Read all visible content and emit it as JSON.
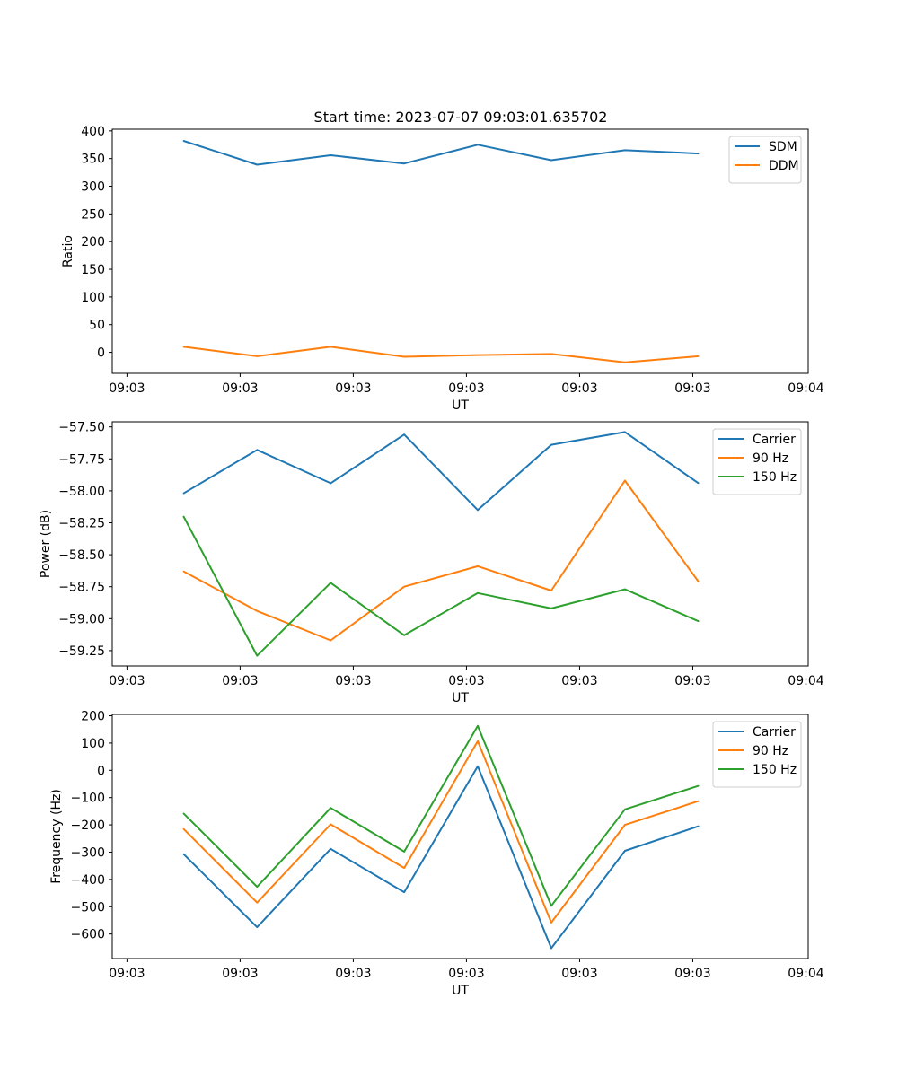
{
  "figure": {
    "title": "Start time: 2023-07-07 09:03:01.635702"
  },
  "chart_data": [
    {
      "type": "line",
      "title": "Start time: 2023-07-07 09:03:01.635702",
      "xlabel": "UT",
      "ylabel": "Ratio",
      "x_tick_labels": [
        "09:03",
        "09:03",
        "09:03",
        "09:03",
        "09:03",
        "09:03",
        "09:04"
      ],
      "x_ticks": [
        0,
        1,
        2,
        3,
        4,
        5,
        6
      ],
      "xlim": [
        -0.13,
        6.02
      ],
      "ylim": [
        -38,
        403
      ],
      "y_ticks": [
        0,
        50,
        100,
        150,
        200,
        250,
        300,
        350,
        400
      ],
      "x": [
        0.5,
        1.15,
        1.8,
        2.45,
        3.1,
        3.75,
        4.4,
        5.05
      ],
      "legend_position": "top-right",
      "series": [
        {
          "name": "SDM",
          "color": "#1f77b4",
          "values": [
            382,
            339,
            356,
            341,
            375,
            347,
            365,
            359
          ]
        },
        {
          "name": "DDM",
          "color": "#ff7f0e",
          "values": [
            10,
            -7,
            10,
            -8,
            -5,
            -3,
            -18,
            -7
          ]
        }
      ]
    },
    {
      "type": "line",
      "title": "",
      "xlabel": "UT",
      "ylabel": "Power (dB)",
      "x_tick_labels": [
        "09:03",
        "09:03",
        "09:03",
        "09:03",
        "09:03",
        "09:03",
        "09:04"
      ],
      "x_ticks": [
        0,
        1,
        2,
        3,
        4,
        5,
        6
      ],
      "xlim": [
        -0.13,
        6.02
      ],
      "ylim": [
        -59.37,
        -57.46
      ],
      "y_ticks": [
        -59.25,
        -59.0,
        -58.75,
        -58.5,
        -58.25,
        -58.0,
        -57.75,
        -57.5
      ],
      "y_tick_labels": [
        "−59.25",
        "−59.00",
        "−58.75",
        "−58.50",
        "−58.25",
        "−58.00",
        "−57.75",
        "−57.50"
      ],
      "x": [
        0.5,
        1.15,
        1.8,
        2.45,
        3.1,
        3.75,
        4.4,
        5.05
      ],
      "legend_position": "top-right",
      "series": [
        {
          "name": "Carrier",
          "color": "#1f77b4",
          "values": [
            -58.02,
            -57.68,
            -57.94,
            -57.56,
            -58.15,
            -57.64,
            -57.54,
            -57.94
          ]
        },
        {
          "name": "90 Hz",
          "color": "#ff7f0e",
          "values": [
            -58.63,
            -58.94,
            -59.17,
            -58.75,
            -58.59,
            -58.78,
            -57.92,
            -58.71
          ]
        },
        {
          "name": "150 Hz",
          "color": "#2ca02c",
          "values": [
            -58.2,
            -59.29,
            -58.72,
            -59.13,
            -58.8,
            -58.92,
            -58.77,
            -59.02
          ]
        }
      ]
    },
    {
      "type": "line",
      "title": "",
      "xlabel": "UT",
      "ylabel": "Frequency (Hz)",
      "x_tick_labels": [
        "09:03",
        "09:03",
        "09:03",
        "09:03",
        "09:03",
        "09:03",
        "09:04"
      ],
      "x_ticks": [
        0,
        1,
        2,
        3,
        4,
        5,
        6
      ],
      "xlim": [
        -0.13,
        6.02
      ],
      "ylim": [
        -690,
        205
      ],
      "y_ticks": [
        -600,
        -500,
        -400,
        -300,
        -200,
        -100,
        0,
        100,
        200
      ],
      "y_tick_labels": [
        "−600",
        "−500",
        "−400",
        "−300",
        "−200",
        "−100",
        "0",
        "100",
        "200"
      ],
      "x": [
        0.5,
        1.15,
        1.8,
        2.45,
        3.1,
        3.75,
        4.4,
        5.05
      ],
      "legend_position": "top-right",
      "series": [
        {
          "name": "Carrier",
          "color": "#1f77b4",
          "values": [
            -307,
            -575,
            -288,
            -447,
            15,
            -652,
            -295,
            -205
          ]
        },
        {
          "name": "90 Hz",
          "color": "#ff7f0e",
          "values": [
            -215,
            -485,
            -198,
            -358,
            107,
            -558,
            -200,
            -113
          ]
        },
        {
          "name": "150 Hz",
          "color": "#2ca02c",
          "values": [
            -158,
            -427,
            -138,
            -298,
            163,
            -497,
            -143,
            -57
          ]
        }
      ]
    }
  ]
}
